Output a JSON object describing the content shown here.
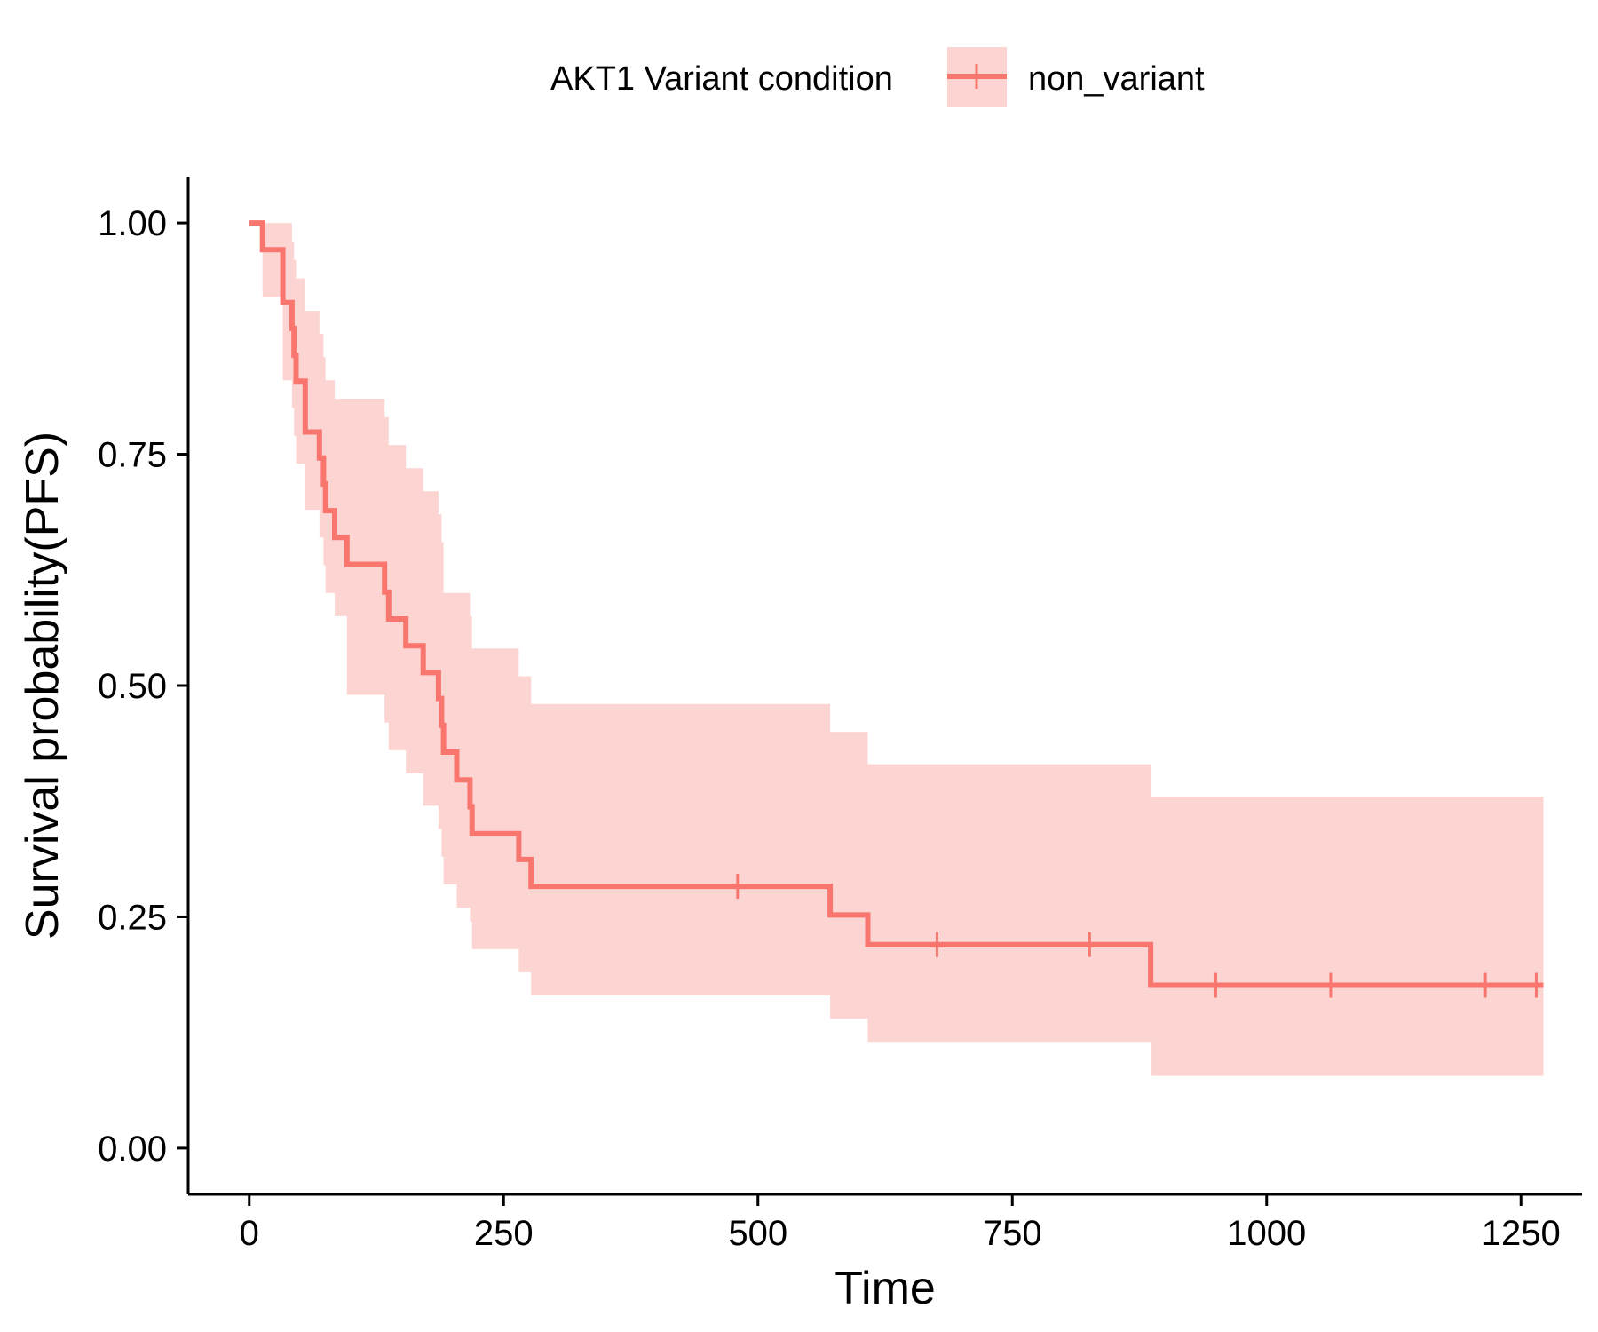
{
  "chart_data": {
    "type": "line",
    "subtype": "kaplan-meier",
    "xlabel": "Time",
    "ylabel": "Survival probability(PFS)",
    "xlim": [
      -60,
      1310
    ],
    "ylim": [
      -0.05,
      1.05
    ],
    "xticks": [
      0,
      250,
      500,
      750,
      1000,
      1250
    ],
    "yticks": [
      0.0,
      0.25,
      0.5,
      0.75,
      1.0
    ],
    "xtick_labels": [
      "0",
      "250",
      "500",
      "750",
      "1000",
      "1250"
    ],
    "ytick_labels": [
      "0.00",
      "0.25",
      "0.50",
      "0.75",
      "1.00"
    ],
    "grid": false,
    "legend": {
      "position": "top",
      "title": "AKT1 Variant condition",
      "entries": [
        "non_variant"
      ]
    },
    "series": [
      {
        "name": "non_variant",
        "color": "#F8766D",
        "ci_color": "#FCD5D3",
        "x": [
          0,
          13,
          33,
          42,
          44,
          46,
          55,
          69,
          73,
          75,
          84,
          96,
          133,
          137,
          154,
          171,
          186,
          189,
          191,
          204,
          217,
          219,
          265,
          277,
          571,
          608,
          886,
          1272
        ],
        "y": [
          1.0,
          0.971,
          0.914,
          0.886,
          0.857,
          0.829,
          0.774,
          0.746,
          0.718,
          0.689,
          0.66,
          0.631,
          0.601,
          0.572,
          0.543,
          0.514,
          0.486,
          0.457,
          0.428,
          0.398,
          0.369,
          0.34,
          0.312,
          0.283,
          0.252,
          0.22,
          0.176,
          0.176
        ],
        "upper": [
          1.0,
          1.0,
          1.0,
          0.98,
          0.96,
          0.94,
          0.905,
          0.88,
          0.855,
          0.83,
          0.81,
          0.81,
          0.79,
          0.76,
          0.735,
          0.71,
          0.685,
          0.655,
          0.6,
          0.6,
          0.575,
          0.54,
          0.51,
          0.48,
          0.45,
          0.415,
          0.38,
          0.38
        ],
        "lower": [
          1.0,
          0.92,
          0.83,
          0.8,
          0.77,
          0.74,
          0.69,
          0.66,
          0.63,
          0.6,
          0.575,
          0.49,
          0.46,
          0.43,
          0.405,
          0.37,
          0.345,
          0.315,
          0.285,
          0.26,
          0.245,
          0.215,
          0.19,
          0.165,
          0.14,
          0.115,
          0.078,
          0.078
        ],
        "censored_x": [
          55,
          480,
          676,
          826,
          950,
          1063,
          1215,
          1265
        ],
        "censored_y": [
          0.806,
          0.283,
          0.22,
          0.22,
          0.176,
          0.176,
          0.176,
          0.176
        ]
      }
    ]
  }
}
